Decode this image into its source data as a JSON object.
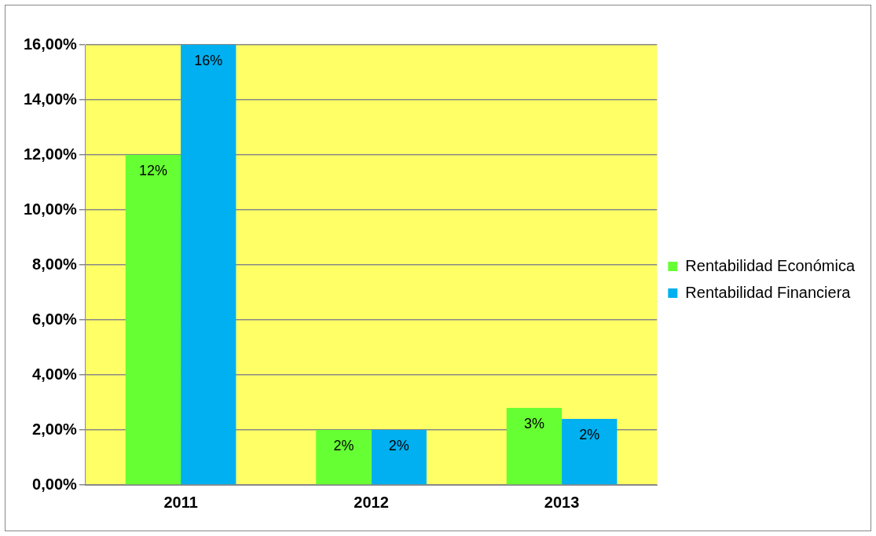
{
  "chart_data": {
    "type": "bar",
    "categories": [
      "2011",
      "2012",
      "2013"
    ],
    "series": [
      {
        "name": "Rentabilidad Económica",
        "color": "#66ff33",
        "values": [
          12,
          2,
          2.8
        ],
        "value_labels": [
          "12%",
          "2%",
          "3%"
        ]
      },
      {
        "name": "Rentabilidad Financiera",
        "color": "#00b0f0",
        "values": [
          16,
          2,
          2.4
        ],
        "value_labels": [
          "16%",
          "2%",
          "2%"
        ]
      }
    ],
    "ylim": [
      0,
      16
    ],
    "yticks": [
      {
        "value": 0,
        "label": "0,00%"
      },
      {
        "value": 2,
        "label": "2,00%"
      },
      {
        "value": 4,
        "label": "4,00%"
      },
      {
        "value": 6,
        "label": "6,00%"
      },
      {
        "value": 8,
        "label": "8,00%"
      },
      {
        "value": 10,
        "label": "10,00%"
      },
      {
        "value": 12,
        "label": "12,00%"
      },
      {
        "value": 14,
        "label": "14,00%"
      },
      {
        "value": 16,
        "label": "16,00%"
      }
    ],
    "grid": "y",
    "legend": "right"
  }
}
